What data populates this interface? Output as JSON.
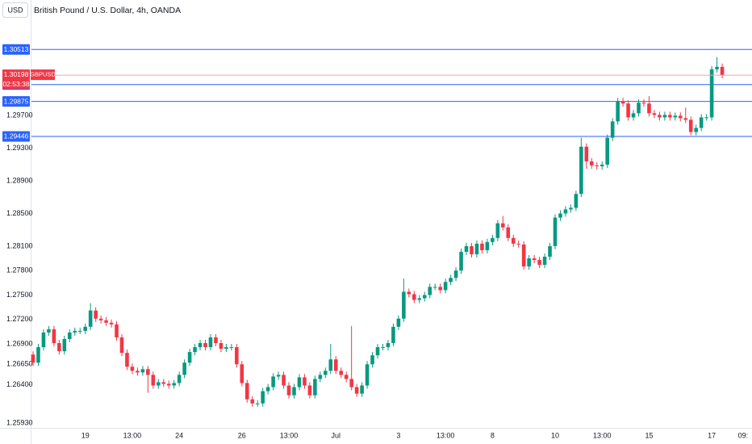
{
  "chart_data": {
    "type": "candlestick",
    "title": "British Pound / U.S. Dollar, 4h, OANDA",
    "currency": "USD",
    "symbol": "GBPUSD",
    "countdown": "02:53:38",
    "up_color": "#089981",
    "down_color": "#f23645",
    "level_color": "#2962ff",
    "categories": [
      null,
      null,
      null,
      null,
      null,
      null,
      null,
      null,
      null,
      null,
      "19",
      null,
      null,
      null,
      null,
      null,
      null,
      null,
      null,
      "13:00",
      null,
      null,
      null,
      null,
      null,
      null,
      null,
      null,
      "24",
      null,
      null,
      null,
      null,
      null,
      null,
      null,
      null,
      null,
      null,
      null,
      "26",
      null,
      null,
      null,
      null,
      null,
      null,
      null,
      null,
      "13:00",
      null,
      null,
      null,
      null,
      null,
      null,
      null,
      null,
      "Jul",
      null,
      null,
      null,
      null,
      null,
      null,
      null,
      null,
      null,
      null,
      null,
      "3",
      null,
      null,
      null,
      null,
      null,
      null,
      null,
      null,
      "13:00",
      null,
      null,
      null,
      null,
      null,
      null,
      null,
      null,
      "8",
      null,
      null,
      null,
      null,
      null,
      null,
      null,
      null,
      null,
      null,
      null,
      "10",
      null,
      null,
      null,
      null,
      null,
      null,
      null,
      null,
      "13:00",
      null,
      null,
      null,
      null,
      null,
      null,
      null,
      null,
      "15",
      null,
      null,
      null,
      null,
      null,
      null,
      null,
      null,
      null,
      null,
      null,
      "17",
      null,
      null,
      null,
      null,
      null,
      "09:"
    ],
    "open": [
      1.2677,
      1.2667,
      1.2686,
      1.2704,
      1.2708,
      1.2691,
      1.2681,
      1.2696,
      1.2704,
      1.2706,
      1.2706,
      1.2711,
      1.2731,
      1.2721,
      1.2719,
      1.2716,
      1.2714,
      1.2698,
      1.2679,
      1.2662,
      1.2657,
      1.2655,
      1.2659,
      1.2652,
      1.2639,
      1.2643,
      1.2641,
      1.2639,
      1.2642,
      1.2652,
      1.2667,
      1.268,
      1.2686,
      1.2691,
      1.2686,
      1.2698,
      1.2691,
      1.2684,
      1.2686,
      1.2686,
      1.2665,
      1.2642,
      1.2622,
      1.2617,
      1.2617,
      1.2632,
      1.2637,
      1.265,
      1.2652,
      1.2639,
      1.2627,
      1.2637,
      1.2649,
      1.2639,
      1.2627,
      1.2647,
      1.2652,
      1.2657,
      1.2671,
      1.2657,
      1.2652,
      1.2647,
      1.2637,
      1.2629,
      1.2639,
      1.2665,
      1.2676,
      1.2686,
      1.2686,
      1.2691,
      1.2711,
      1.2721,
      1.2754,
      1.2751,
      1.2744,
      1.2746,
      1.275,
      1.276,
      1.276,
      1.2756,
      1.2766,
      1.2771,
      1.278,
      1.2803,
      1.281,
      1.28,
      1.2813,
      1.2805,
      1.2815,
      1.282,
      1.2838,
      1.2833,
      1.282,
      1.2813,
      1.2812,
      1.2785,
      1.2795,
      1.2793,
      1.2787,
      1.2797,
      1.281,
      1.2845,
      1.285,
      1.2855,
      1.2857,
      1.2874,
      1.2932,
      1.2914,
      1.2909,
      1.2908,
      1.291,
      1.2943,
      1.2963,
      1.2988,
      1.2985,
      1.2968,
      1.2973,
      1.2986,
      1.2985,
      1.2973,
      1.2971,
      1.2968,
      1.2971,
      1.2968,
      1.297,
      1.2967,
      1.2965,
      1.295,
      1.2955,
      1.2968,
      1.2968,
      1.3027,
      1.303,
      null,
      null,
      null,
      null
    ],
    "high": [
      1.2681,
      1.269,
      1.2708,
      1.2712,
      1.2712,
      1.2695,
      1.27,
      1.2708,
      1.271,
      1.271,
      1.2715,
      1.274,
      1.2735,
      1.2725,
      1.2723,
      1.272,
      1.2718,
      1.2702,
      1.2683,
      1.2666,
      1.2661,
      1.2663,
      1.2663,
      1.2656,
      1.2647,
      1.2647,
      1.2645,
      1.2646,
      1.2656,
      1.2671,
      1.2684,
      1.269,
      1.2695,
      1.2695,
      1.2702,
      1.2702,
      1.2695,
      1.269,
      1.269,
      1.269,
      1.2669,
      1.2646,
      1.2626,
      1.2621,
      1.2636,
      1.2641,
      1.2654,
      1.2656,
      1.2656,
      1.2643,
      1.2641,
      1.2653,
      1.2653,
      1.2643,
      1.2651,
      1.2656,
      1.2661,
      1.269,
      1.2675,
      1.2661,
      1.2656,
      1.2712,
      1.2641,
      1.2643,
      1.2669,
      1.268,
      1.269,
      1.269,
      1.2695,
      1.2715,
      1.2725,
      1.277,
      1.2758,
      1.2755,
      1.275,
      1.2754,
      1.2764,
      1.2764,
      1.2764,
      1.277,
      1.2775,
      1.2784,
      1.2807,
      1.2814,
      1.2814,
      1.2817,
      1.2817,
      1.2819,
      1.2824,
      1.2842,
      1.2847,
      1.2837,
      1.2824,
      1.2817,
      1.2816,
      1.2799,
      1.2799,
      1.2797,
      1.2801,
      1.2814,
      1.2849,
      1.2854,
      1.2859,
      1.2861,
      1.2878,
      1.2943,
      1.2936,
      1.2918,
      1.2913,
      1.2914,
      1.2947,
      1.2967,
      1.2992,
      1.2992,
      1.2989,
      1.2977,
      1.299,
      1.299,
      1.2994,
      1.2977,
      1.2975,
      1.2975,
      1.2975,
      1.2974,
      1.2974,
      1.298,
      1.2969,
      1.2959,
      1.2972,
      1.2972,
      1.3031,
      1.3042,
      1.3034,
      null,
      null,
      null,
      null
    ],
    "low": [
      1.2663,
      1.2663,
      1.2682,
      1.27,
      1.2687,
      1.2677,
      1.2677,
      1.2692,
      1.27,
      1.2702,
      1.2702,
      1.2707,
      1.2717,
      1.2715,
      1.2712,
      1.271,
      1.2694,
      1.2675,
      1.2658,
      1.2653,
      1.2651,
      1.2651,
      1.263,
      1.2635,
      1.2635,
      1.2637,
      1.2635,
      1.2635,
      1.2638,
      1.2648,
      1.2663,
      1.2676,
      1.2682,
      1.2682,
      1.2682,
      1.2687,
      1.268,
      1.268,
      1.2682,
      1.2661,
      1.2638,
      1.2618,
      1.2613,
      1.2613,
      1.2613,
      1.2628,
      1.2633,
      1.2646,
      1.2635,
      1.2623,
      1.2623,
      1.2633,
      1.2635,
      1.2623,
      1.2623,
      1.2643,
      1.2648,
      1.2653,
      1.2653,
      1.2648,
      1.2643,
      1.2633,
      1.2625,
      1.2625,
      1.2635,
      1.2661,
      1.2672,
      1.2682,
      1.2682,
      1.2687,
      1.2707,
      1.2717,
      1.2747,
      1.274,
      1.274,
      1.2742,
      1.2746,
      1.2756,
      1.2752,
      1.2752,
      1.2762,
      1.2767,
      1.2776,
      1.2799,
      1.2796,
      1.2796,
      1.2801,
      1.2801,
      1.2811,
      1.2816,
      1.2829,
      1.2816,
      1.2809,
      1.2808,
      1.2781,
      1.2781,
      1.2789,
      1.2783,
      1.2783,
      1.2793,
      1.2806,
      1.2841,
      1.2846,
      1.2851,
      1.2853,
      1.287,
      1.2905,
      1.2905,
      1.2904,
      1.2904,
      1.2906,
      1.2939,
      1.2959,
      1.2981,
      1.2964,
      1.2964,
      1.2969,
      1.2981,
      1.2969,
      1.2967,
      1.2964,
      1.2964,
      1.2964,
      1.2964,
      1.2963,
      1.2961,
      1.2946,
      1.2946,
      1.2951,
      1.2964,
      1.2964,
      1.3023,
      1.3016,
      null,
      null,
      null,
      null
    ],
    "close": [
      1.2667,
      1.2686,
      1.2704,
      1.2708,
      1.2691,
      1.2681,
      1.2696,
      1.2704,
      1.2706,
      1.2706,
      1.2711,
      1.2731,
      1.2721,
      1.2719,
      1.2716,
      1.2714,
      1.2698,
      1.2679,
      1.2662,
      1.2657,
      1.2655,
      1.2659,
      1.2652,
      1.2639,
      1.2643,
      1.2641,
      1.2639,
      1.2642,
      1.2652,
      1.2667,
      1.268,
      1.2686,
      1.2691,
      1.2686,
      1.2698,
      1.2691,
      1.2684,
      1.2686,
      1.2686,
      1.2665,
      1.2642,
      1.2622,
      1.2617,
      1.2617,
      1.2632,
      1.2637,
      1.265,
      1.2652,
      1.2639,
      1.2627,
      1.2637,
      1.2649,
      1.2639,
      1.2627,
      1.2647,
      1.2652,
      1.2657,
      1.2671,
      1.2657,
      1.2652,
      1.2647,
      1.2637,
      1.2629,
      1.2639,
      1.2665,
      1.2676,
      1.2686,
      1.2686,
      1.2691,
      1.2711,
      1.2721,
      1.2754,
      1.2751,
      1.2744,
      1.2746,
      1.275,
      1.276,
      1.276,
      1.2756,
      1.2766,
      1.2771,
      1.278,
      1.2803,
      1.281,
      1.28,
      1.2813,
      1.2805,
      1.2815,
      1.282,
      1.2838,
      1.2833,
      1.282,
      1.2813,
      1.2812,
      1.2785,
      1.2795,
      1.2793,
      1.2787,
      1.2797,
      1.281,
      1.2845,
      1.285,
      1.2855,
      1.2857,
      1.2874,
      1.2932,
      1.2914,
      1.2909,
      1.2908,
      1.291,
      1.2943,
      1.2963,
      1.2988,
      1.2985,
      1.2968,
      1.2973,
      1.2986,
      1.2985,
      1.2973,
      1.2971,
      1.2968,
      1.2971,
      1.2968,
      1.297,
      1.2967,
      1.2965,
      1.295,
      1.2955,
      1.2968,
      1.2968,
      1.3027,
      1.303,
      1.30198,
      null,
      null,
      null,
      null
    ],
    "levels": [
      1.30513,
      1.30082,
      1.29875,
      1.29446
    ],
    "ylim": [
      1.2587,
      1.3112
    ],
    "yticks": [
      {
        "value": 1.297,
        "label": "1.29700"
      },
      {
        "value": 1.293,
        "label": "1.29300"
      },
      {
        "value": 1.289,
        "label": "1.28900"
      },
      {
        "value": 1.285,
        "label": "1.28500"
      },
      {
        "value": 1.281,
        "label": "1.28100"
      },
      {
        "value": 1.278,
        "label": "1.27800"
      },
      {
        "value": 1.275,
        "label": "1.27500"
      },
      {
        "value": 1.272,
        "label": "1.27200"
      },
      {
        "value": 1.269,
        "label": "1.26900"
      },
      {
        "value": 1.2665,
        "label": "1.26650"
      },
      {
        "value": 1.264,
        "label": "1.26400"
      },
      {
        "value": 1.2593,
        "label": "1.25930"
      }
    ],
    "grid": false
  }
}
